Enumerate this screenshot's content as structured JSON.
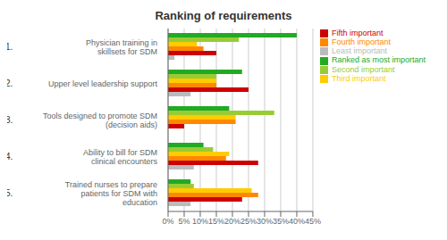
{
  "chart_data": {
    "type": "bar",
    "orientation": "horizontal",
    "title": "Ranking of requirements",
    "categories": [
      "Physician training in skillsets for SDM",
      "Upper level leadership support",
      "Tools designed to promote SDM (decision aids)",
      "Ability to bill for SDM clinical encounters",
      "Trained nurses to prepare patients for SDM with education"
    ],
    "annotations": [
      "1.",
      "2.",
      "3.",
      "4.",
      "5."
    ],
    "series": [
      {
        "name": "Ranked as most important",
        "color": "#22aa22",
        "values": [
          40,
          23,
          19,
          11,
          7
        ]
      },
      {
        "name": "Second important",
        "color": "#99cc33",
        "values": [
          22,
          15,
          33,
          14,
          8
        ]
      },
      {
        "name": "Third important",
        "color": "#ffcc00",
        "values": [
          9,
          15,
          21,
          19,
          26
        ]
      },
      {
        "name": "Fourth important",
        "color": "#ff8800",
        "values": [
          11,
          15,
          21,
          18,
          28
        ]
      },
      {
        "name": "Fifth important",
        "color": "#cc0000",
        "values": [
          15,
          25,
          5,
          28,
          23
        ]
      },
      {
        "name": "Least important",
        "color": "#bbbbbb",
        "values": [
          2,
          7,
          0,
          8,
          7
        ]
      }
    ],
    "xlim": [
      0,
      45
    ],
    "xticks": [
      {
        "value": 0,
        "label": "0%"
      },
      {
        "value": 5,
        "label": "5%"
      },
      {
        "value": 10,
        "label": "10%"
      },
      {
        "value": 15,
        "label": "15%"
      },
      {
        "value": 20,
        "label": "20%"
      },
      {
        "value": 25,
        "label": "25%"
      },
      {
        "value": 30,
        "label": "30%"
      },
      {
        "value": 35,
        "label": "35%"
      },
      {
        "value": 40,
        "label": "40%"
      },
      {
        "value": 45,
        "label": "45%"
      }
    ],
    "grid": true,
    "legend": "upper right"
  }
}
